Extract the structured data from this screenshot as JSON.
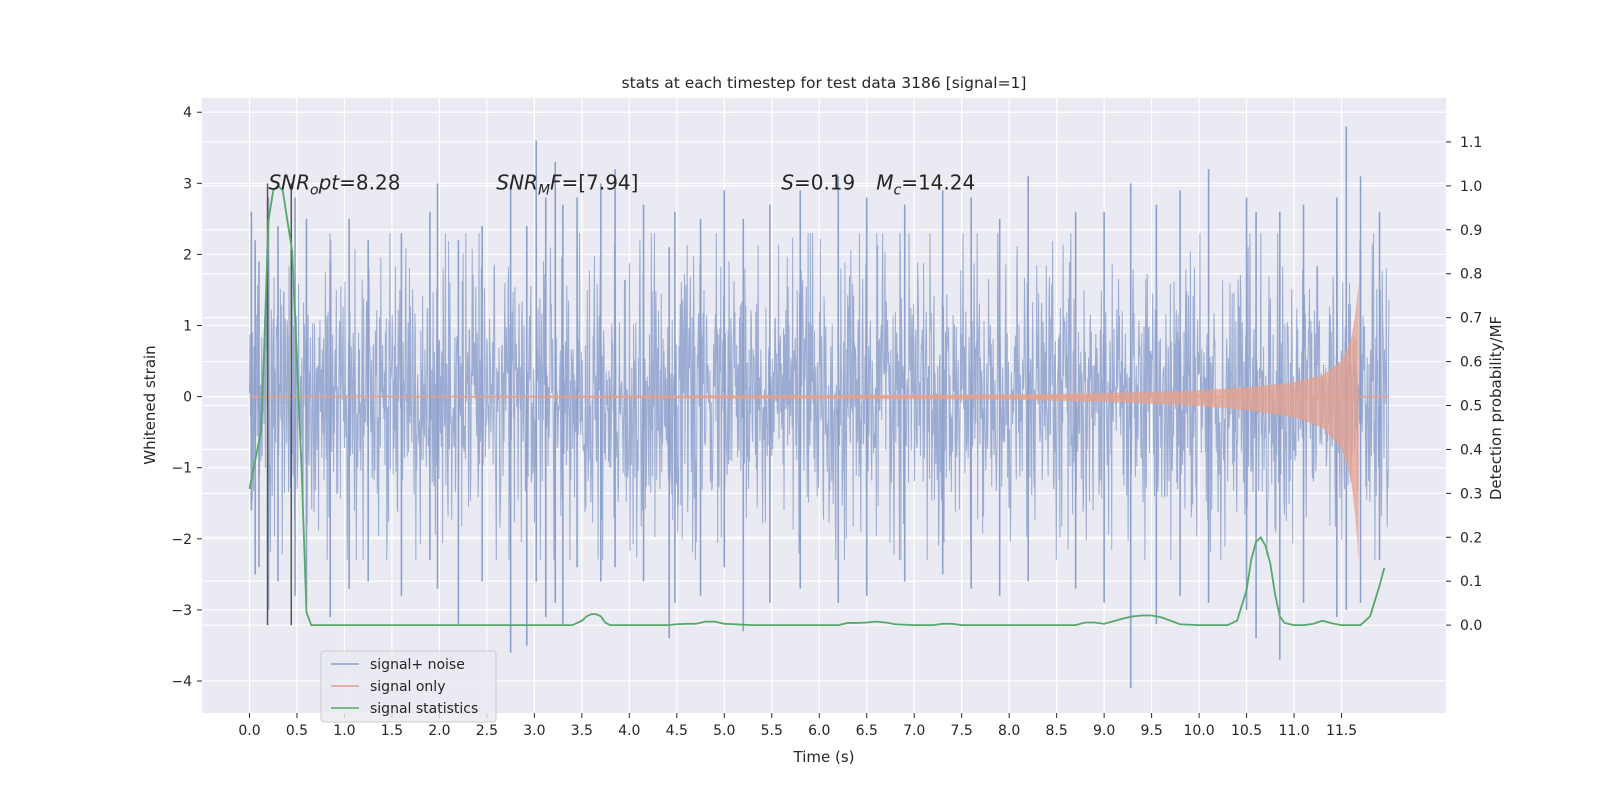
{
  "chart_data": {
    "type": "line",
    "title": "stats at each timestep for test data 3186 [signal=1]",
    "xlabel": "Time (s)",
    "ylabel": "Whitened strain",
    "y2label": "Detection probability/MF",
    "xlim": [
      -0.5,
      12.6
    ],
    "ylim": [
      -4.45,
      4.2
    ],
    "y2lim": [
      -0.2,
      1.2
    ],
    "x_ticks": [
      0.0,
      0.5,
      1.0,
      1.5,
      2.0,
      2.5,
      3.0,
      3.5,
      4.0,
      4.5,
      5.0,
      5.5,
      6.0,
      6.5,
      7.0,
      7.5,
      8.0,
      8.5,
      9.0,
      9.5,
      10.0,
      10.5,
      11.0,
      11.5
    ],
    "x_tick_labels": [
      "0.0",
      "0.5",
      "1.0",
      "1.5",
      "2.0",
      "2.5",
      "3.0",
      "3.5",
      "4.0",
      "4.5",
      "5.0",
      "5.5",
      "6.0",
      "6.5",
      "7.0",
      "7.5",
      "8.0",
      "8.5",
      "9.0",
      "9.5",
      "10.0",
      "10.5",
      "11.0",
      "11.5"
    ],
    "y_ticks": [
      -4,
      -3,
      -2,
      -1,
      0,
      1,
      2,
      3,
      4
    ],
    "y_tick_labels": [
      "−4",
      "−3",
      "−2",
      "−1",
      "0",
      "1",
      "2",
      "3",
      "4"
    ],
    "y2_ticks": [
      0.0,
      0.1,
      0.2,
      0.3,
      0.4,
      0.5,
      0.6,
      0.7,
      0.8,
      0.9,
      1.0,
      1.1
    ],
    "y2_tick_labels": [
      "0.0",
      "0.1",
      "0.2",
      "0.3",
      "0.4",
      "0.5",
      "0.6",
      "0.7",
      "0.8",
      "0.9",
      "1.0",
      "1.1"
    ],
    "grid": true,
    "legend_position": "lower-left",
    "annotations": [
      {
        "text": "SNR_opt=8.28",
        "x": 0.2,
        "y": 3.0
      },
      {
        "text": "SNR_MF=[7.94]",
        "x": 2.6,
        "y": 3.0
      },
      {
        "text": "S=0.19",
        "x": 5.6,
        "y": 3.0
      },
      {
        "text": "M_c=14.24",
        "x": 6.6,
        "y": 3.0
      }
    ],
    "vertical_lines": [
      0.19,
      0.44
    ],
    "series": [
      {
        "name": "signal+ noise",
        "axis": "left",
        "color": "#8da0cb",
        "x_range": [
          0.0,
          12.0
        ],
        "envelope_spikes": [
          {
            "x": 0.02,
            "max": 2.6,
            "min": -1.6
          },
          {
            "x": 0.06,
            "max": 2.2,
            "min": -2.5
          },
          {
            "x": 0.1,
            "max": 1.9,
            "min": -2.4
          },
          {
            "x": 0.2,
            "max": 2.8,
            "min": -3.0
          },
          {
            "x": 0.3,
            "max": 2.4,
            "min": -2.6
          },
          {
            "x": 0.48,
            "max": 2.8,
            "min": -2.8
          },
          {
            "x": 0.6,
            "max": 2.5,
            "min": -2.9
          },
          {
            "x": 0.85,
            "max": 1.9,
            "min": -3.1
          },
          {
            "x": 1.05,
            "max": 2.5,
            "min": -2.7
          },
          {
            "x": 1.25,
            "max": 2.2,
            "min": -2.6
          },
          {
            "x": 1.6,
            "max": 2.3,
            "min": -2.8
          },
          {
            "x": 1.9,
            "max": 2.6,
            "min": -2.3
          },
          {
            "x": 1.98,
            "max": 3.0,
            "min": -2.7
          },
          {
            "x": 2.2,
            "max": 2.2,
            "min": -3.2
          },
          {
            "x": 2.45,
            "max": 2.4,
            "min": -2.6
          },
          {
            "x": 2.75,
            "max": 3.0,
            "min": -3.6
          },
          {
            "x": 2.92,
            "max": 2.4,
            "min": -3.5
          },
          {
            "x": 3.02,
            "max": 3.6,
            "min": -2.6
          },
          {
            "x": 3.12,
            "max": 2.8,
            "min": -3.1
          },
          {
            "x": 3.22,
            "max": 3.3,
            "min": -2.9
          },
          {
            "x": 3.3,
            "max": 2.7,
            "min": -3.2
          },
          {
            "x": 3.45,
            "max": 2.8,
            "min": -2.4
          },
          {
            "x": 3.7,
            "max": 3.0,
            "min": -2.6
          },
          {
            "x": 3.85,
            "max": 3.2,
            "min": -2.4
          },
          {
            "x": 4.15,
            "max": 2.7,
            "min": -2.6
          },
          {
            "x": 4.42,
            "max": 2.1,
            "min": -3.4
          },
          {
            "x": 4.48,
            "max": 2.6,
            "min": -2.9
          },
          {
            "x": 4.75,
            "max": 2.5,
            "min": -2.8
          },
          {
            "x": 5.0,
            "max": 2.9,
            "min": -2.4
          },
          {
            "x": 5.2,
            "max": 2.5,
            "min": -3.3
          },
          {
            "x": 5.48,
            "max": 2.7,
            "min": -2.9
          },
          {
            "x": 5.8,
            "max": 2.9,
            "min": -2.7
          },
          {
            "x": 6.2,
            "max": 3.1,
            "min": -2.9
          },
          {
            "x": 6.5,
            "max": 2.8,
            "min": -2.8
          },
          {
            "x": 6.9,
            "max": 2.7,
            "min": -2.6
          },
          {
            "x": 7.3,
            "max": 2.9,
            "min": -2.5
          },
          {
            "x": 7.6,
            "max": 2.8,
            "min": -2.7
          },
          {
            "x": 7.9,
            "max": 2.5,
            "min": -2.8
          },
          {
            "x": 8.2,
            "max": 3.1,
            "min": -2.6
          },
          {
            "x": 8.7,
            "max": 2.6,
            "min": -2.7
          },
          {
            "x": 9.0,
            "max": 2.6,
            "min": -2.9
          },
          {
            "x": 9.28,
            "max": 3.0,
            "min": -4.1
          },
          {
            "x": 9.55,
            "max": 2.7,
            "min": -3.2
          },
          {
            "x": 9.8,
            "max": 2.9,
            "min": -2.8
          },
          {
            "x": 10.1,
            "max": 3.2,
            "min": -2.9
          },
          {
            "x": 10.5,
            "max": 2.8,
            "min": -3.0
          },
          {
            "x": 10.6,
            "max": 2.6,
            "min": -3.4
          },
          {
            "x": 10.85,
            "max": 2.6,
            "min": -3.7
          },
          {
            "x": 11.1,
            "max": 2.7,
            "min": -2.9
          },
          {
            "x": 11.45,
            "max": 2.8,
            "min": -3.1
          },
          {
            "x": 11.55,
            "max": 3.8,
            "min": -3.0
          },
          {
            "x": 11.7,
            "max": 3.1,
            "min": -2.9
          },
          {
            "x": 11.9,
            "max": 2.6,
            "min": -2.3
          }
        ]
      },
      {
        "name": "signal only",
        "axis": "left",
        "color": "#e5a08c",
        "x": [
          0.0,
          8.0,
          9.0,
          10.0,
          10.5,
          11.0,
          11.3,
          11.5,
          11.6,
          11.65,
          11.68,
          12.0
        ],
        "amplitude": [
          0.0,
          0.03,
          0.05,
          0.09,
          0.13,
          0.2,
          0.3,
          0.5,
          0.8,
          1.2,
          1.6,
          0.0
        ]
      },
      {
        "name": "signal statistics",
        "axis": "right",
        "color": "#55a868",
        "x": [
          0.0,
          0.12,
          0.15,
          0.2,
          0.25,
          0.3,
          0.35,
          0.4,
          0.45,
          0.5,
          0.55,
          0.6,
          0.65,
          0.7,
          1.0,
          2.0,
          3.0,
          3.4,
          3.5,
          3.55,
          3.6,
          3.65,
          3.7,
          3.75,
          3.8,
          4.0,
          4.4,
          4.5,
          4.6,
          4.7,
          4.8,
          4.9,
          5.0,
          5.3,
          6.0,
          6.2,
          6.3,
          6.4,
          6.5,
          6.6,
          6.7,
          6.8,
          7.0,
          7.2,
          7.3,
          7.4,
          7.5,
          8.0,
          8.7,
          8.8,
          8.9,
          9.0,
          9.2,
          9.3,
          9.4,
          9.5,
          9.6,
          9.7,
          9.8,
          10.0,
          10.3,
          10.4,
          10.5,
          10.55,
          10.6,
          10.65,
          10.7,
          10.75,
          10.8,
          10.85,
          10.9,
          11.0,
          11.1,
          11.2,
          11.3,
          11.4,
          11.5,
          11.6,
          11.7,
          11.8,
          11.9,
          11.95
        ],
        "y": [
          0.31,
          0.44,
          0.6,
          0.92,
          0.99,
          1.0,
          0.99,
          0.92,
          0.85,
          0.6,
          0.35,
          0.03,
          0.0,
          0.0,
          0.0,
          0.0,
          0.0,
          0.0,
          0.01,
          0.02,
          0.025,
          0.025,
          0.02,
          0.005,
          0.0,
          0.0,
          0.0,
          0.002,
          0.003,
          0.003,
          0.008,
          0.008,
          0.003,
          0.0,
          0.0,
          0.0,
          0.005,
          0.005,
          0.006,
          0.008,
          0.006,
          0.002,
          0.0,
          0.0,
          0.003,
          0.003,
          0.0,
          0.0,
          0.0,
          0.006,
          0.006,
          0.003,
          0.015,
          0.02,
          0.022,
          0.022,
          0.018,
          0.01,
          0.002,
          0.0,
          0.0,
          0.01,
          0.08,
          0.15,
          0.19,
          0.2,
          0.18,
          0.14,
          0.07,
          0.02,
          0.005,
          0.0,
          0.0,
          0.003,
          0.01,
          0.004,
          0.0,
          0.0,
          0.0,
          0.02,
          0.09,
          0.13
        ]
      }
    ]
  }
}
